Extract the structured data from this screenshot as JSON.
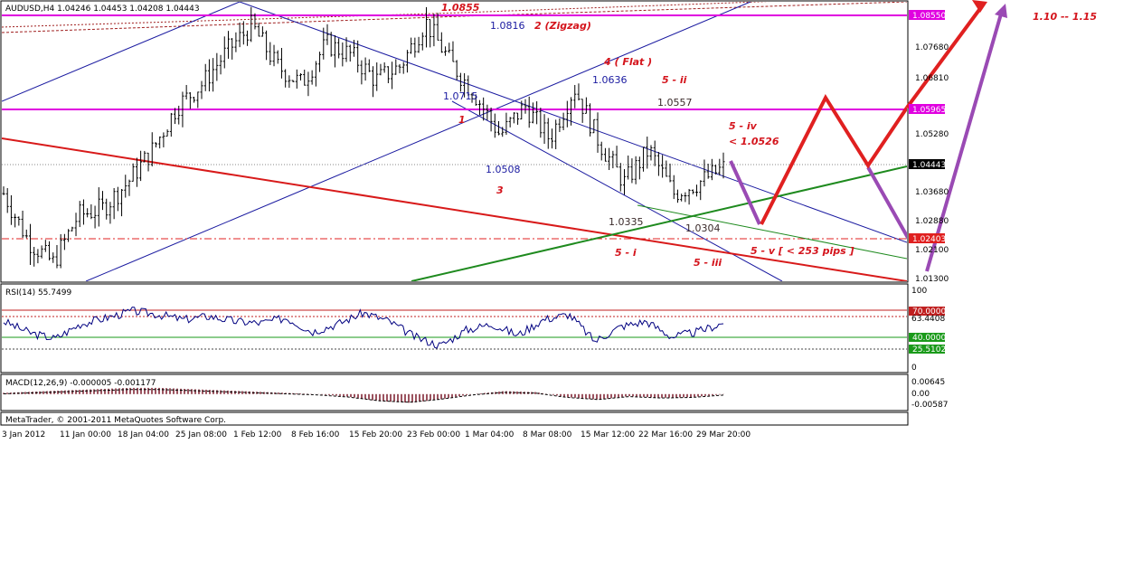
{
  "header": {
    "symbol_line": "AUDUSD,H4  1.04246 1.04453 1.04208 1.04443",
    "rsi_label": "RSI(14) 55.7499",
    "macd_label": "MACD(12,26,9) -0.000005 -0.001177",
    "copyright": "MetaTrader, © 2001-2011 MetaQuotes Software Corp."
  },
  "price_axis": {
    "ticks": [
      "1.08550",
      "1.07680",
      "1.06810",
      "1.05965",
      "1.05280",
      "1.04443",
      "1.03680",
      "1.02880",
      "1.02403",
      "1.02100",
      "1.01300"
    ],
    "markers": [
      {
        "text": "1.08550",
        "color": "#e000e0"
      },
      {
        "text": "1.05965",
        "color": "#e000e0"
      },
      {
        "text": "1.04443",
        "color": "#000000"
      },
      {
        "text": "1.02403",
        "color": "#e02020"
      }
    ]
  },
  "rsi_axis": {
    "ticks": [
      "100",
      "63.4408",
      "0"
    ],
    "markers": [
      {
        "text": "70.0000",
        "color": "#c02020"
      },
      {
        "text": "40.0000",
        "color": "#1a9a1a"
      },
      {
        "text": "25.5102",
        "color": "#1a9a1a"
      }
    ],
    "levels": [
      70,
      63.4408,
      40,
      25.5102
    ]
  },
  "macd_axis": {
    "ticks": [
      "0.00645",
      "0.00",
      "-0.00587"
    ]
  },
  "time_axis": {
    "labels": [
      "3 Jan 2012",
      "11 Jan 00:00",
      "18 Jan 04:00",
      "25 Jan 08:00",
      "1 Feb 12:00",
      "8 Feb 16:00",
      "15 Feb 20:00",
      "23 Feb 00:00",
      "1 Mar 04:00",
      "8 Mar 08:00",
      "15 Mar 12:00",
      "22 Mar 16:00",
      "29 Mar 20:00"
    ]
  },
  "annotations": {
    "blue": [
      "1.0816",
      "1.0715",
      "1.0636",
      "1.0508"
    ],
    "dark": [
      "1.0557",
      "1.0335",
      "1.0304"
    ],
    "red": [
      "1.0855",
      "2 (Zigzag)",
      "4 ( Flat )",
      "5 - ii",
      "1",
      "5 - iv",
      "< 1.0526",
      "3",
      "5 - i",
      "5 - iii",
      "5 - v [ < 253 pips ]",
      "1.10 -- 1.15"
    ]
  },
  "colors": {
    "magenta_line": "#e000e0",
    "red_trend": "#d81a1a",
    "green_trend": "#1e8a1e",
    "blue_channel": "#1a1aa0",
    "purple_arrow": "#9a4ab4",
    "red_arrow": "#e02020"
  },
  "chart_data": [
    {
      "type": "candlestick",
      "title": "AUDUSD,H4",
      "ylim": [
        1.013,
        1.0895
      ],
      "key_levels": [
        1.0855,
        1.05965,
        1.04443,
        1.02403
      ],
      "x_categories": [
        "3 Jan 2012",
        "11 Jan 00:00",
        "18 Jan 04:00",
        "25 Jan 08:00",
        "1 Feb 12:00",
        "8 Feb 16:00",
        "15 Feb 20:00",
        "23 Feb 00:00",
        "1 Mar 04:00",
        "8 Mar 08:00",
        "15 Mar 12:00",
        "22 Mar 16:00",
        "29 Mar 20:00"
      ],
      "approx_close_path": [
        1.037,
        1.024,
        1.018,
        1.031,
        1.033,
        1.04,
        1.049,
        1.061,
        1.067,
        1.076,
        1.083,
        1.072,
        1.067,
        1.078,
        1.075,
        1.068,
        1.072,
        1.084,
        1.073,
        1.064,
        1.053,
        1.061,
        1.052,
        1.066,
        1.051,
        1.04,
        1.049,
        1.037,
        1.04,
        1.044
      ]
    },
    {
      "type": "line",
      "title": "RSI(14) 55.7499",
      "ylim": [
        0,
        100
      ],
      "approx_values": [
        58,
        45,
        38,
        55,
        62,
        70,
        66,
        60,
        64,
        58,
        56,
        62,
        46,
        55,
        68,
        58,
        40,
        30,
        48,
        55,
        42,
        60,
        66,
        35,
        52,
        58,
        40,
        46,
        56
      ]
    },
    {
      "type": "bar",
      "title": "MACD(12,26,9) -0.000005 -0.001177",
      "ylim": [
        -0.00587,
        0.00645
      ],
      "approx_values": [
        0.0005,
        0.001,
        0.0015,
        0.002,
        0.0025,
        0.0025,
        0.002,
        0.0015,
        0.001,
        0.0005,
        0.0,
        -0.001,
        -0.0028,
        -0.0035,
        -0.002,
        0.0,
        0.0012,
        0.0008,
        -0.0012,
        -0.0022,
        -0.0008,
        -0.0015,
        -0.0012,
        -0.0001
      ]
    }
  ]
}
